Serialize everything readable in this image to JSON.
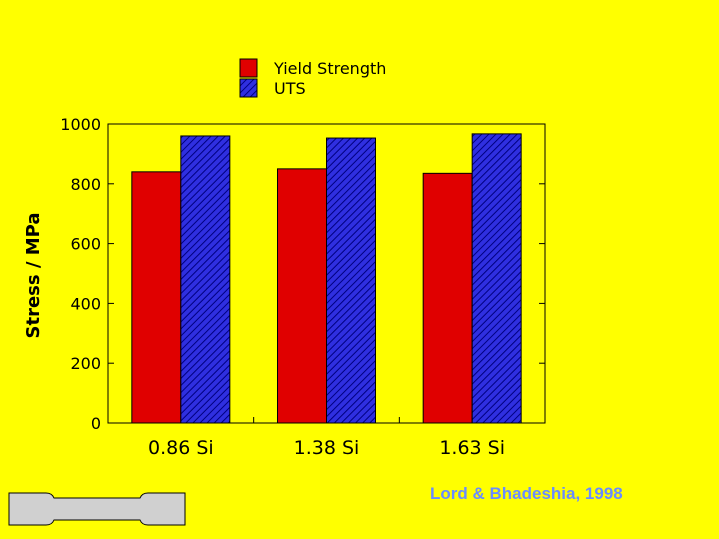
{
  "colors": {
    "background": "#FFFF00",
    "plot_background": "#FFFF00",
    "yield_strength": "#E00000",
    "uts_fill": "#2F2FE0",
    "uts_hatch": "#000080",
    "credit": "#6A8CFF",
    "specimen_fill": "#D0D0D0"
  },
  "chart_data": {
    "type": "bar",
    "title": "",
    "xlabel": "",
    "ylabel": "Stress / MPa",
    "ylim": [
      0,
      1000
    ],
    "yticks": [
      0,
      200,
      400,
      600,
      800,
      1000
    ],
    "ytick_labels": [
      "0",
      "200",
      "400",
      "600",
      "800",
      "1000"
    ],
    "categories": [
      "0.86 Si",
      "1.38 Si",
      "1.63 Si"
    ],
    "series": [
      {
        "name": "Yield Strength",
        "values": [
          840,
          850,
          835
        ],
        "color": "#E00000",
        "pattern": "solid"
      },
      {
        "name": "UTS",
        "values": [
          960,
          953,
          967
        ],
        "color": "#2F2FE0",
        "pattern": "hatched"
      }
    ],
    "legend_position": "top-center",
    "grid": false
  },
  "credit": "Lord & Bhadeshia, 1998",
  "specimen_icon": "tensile-specimen-icon"
}
